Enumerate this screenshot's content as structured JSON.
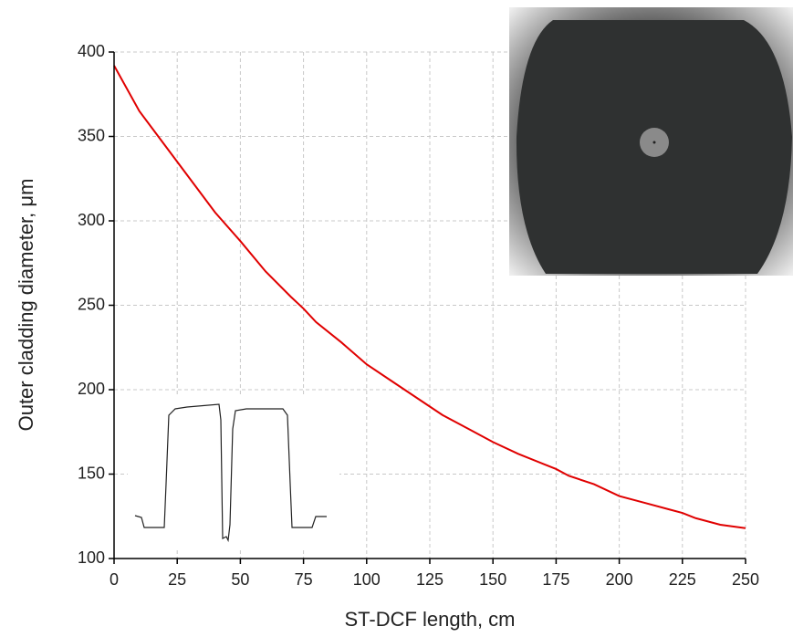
{
  "chart_data": {
    "type": "line",
    "x_label": "ST-DCF length, cm",
    "y_label": "Outer cladding diameter, μm",
    "x": [
      0,
      10,
      20,
      25,
      30,
      40,
      50,
      60,
      70,
      75,
      80,
      90,
      100,
      110,
      120,
      125,
      130,
      140,
      150,
      160,
      170,
      175,
      180,
      190,
      200,
      210,
      220,
      225,
      230,
      240,
      250
    ],
    "values": [
      392,
      365,
      345,
      335,
      325,
      305,
      288,
      270,
      255,
      248,
      240,
      228,
      215,
      205,
      195,
      190,
      185,
      177,
      169,
      162,
      156,
      153,
      149,
      144,
      137,
      133,
      129,
      127,
      124,
      120,
      118
    ],
    "color": "#e00000",
    "xlim": [
      0,
      250
    ],
    "xticks": [
      0,
      25,
      50,
      75,
      100,
      125,
      150,
      175,
      200,
      225,
      250
    ],
    "ylim": [
      100,
      400
    ],
    "yticks": [
      100,
      150,
      200,
      250,
      300,
      350,
      400
    ],
    "grid": true
  }
}
